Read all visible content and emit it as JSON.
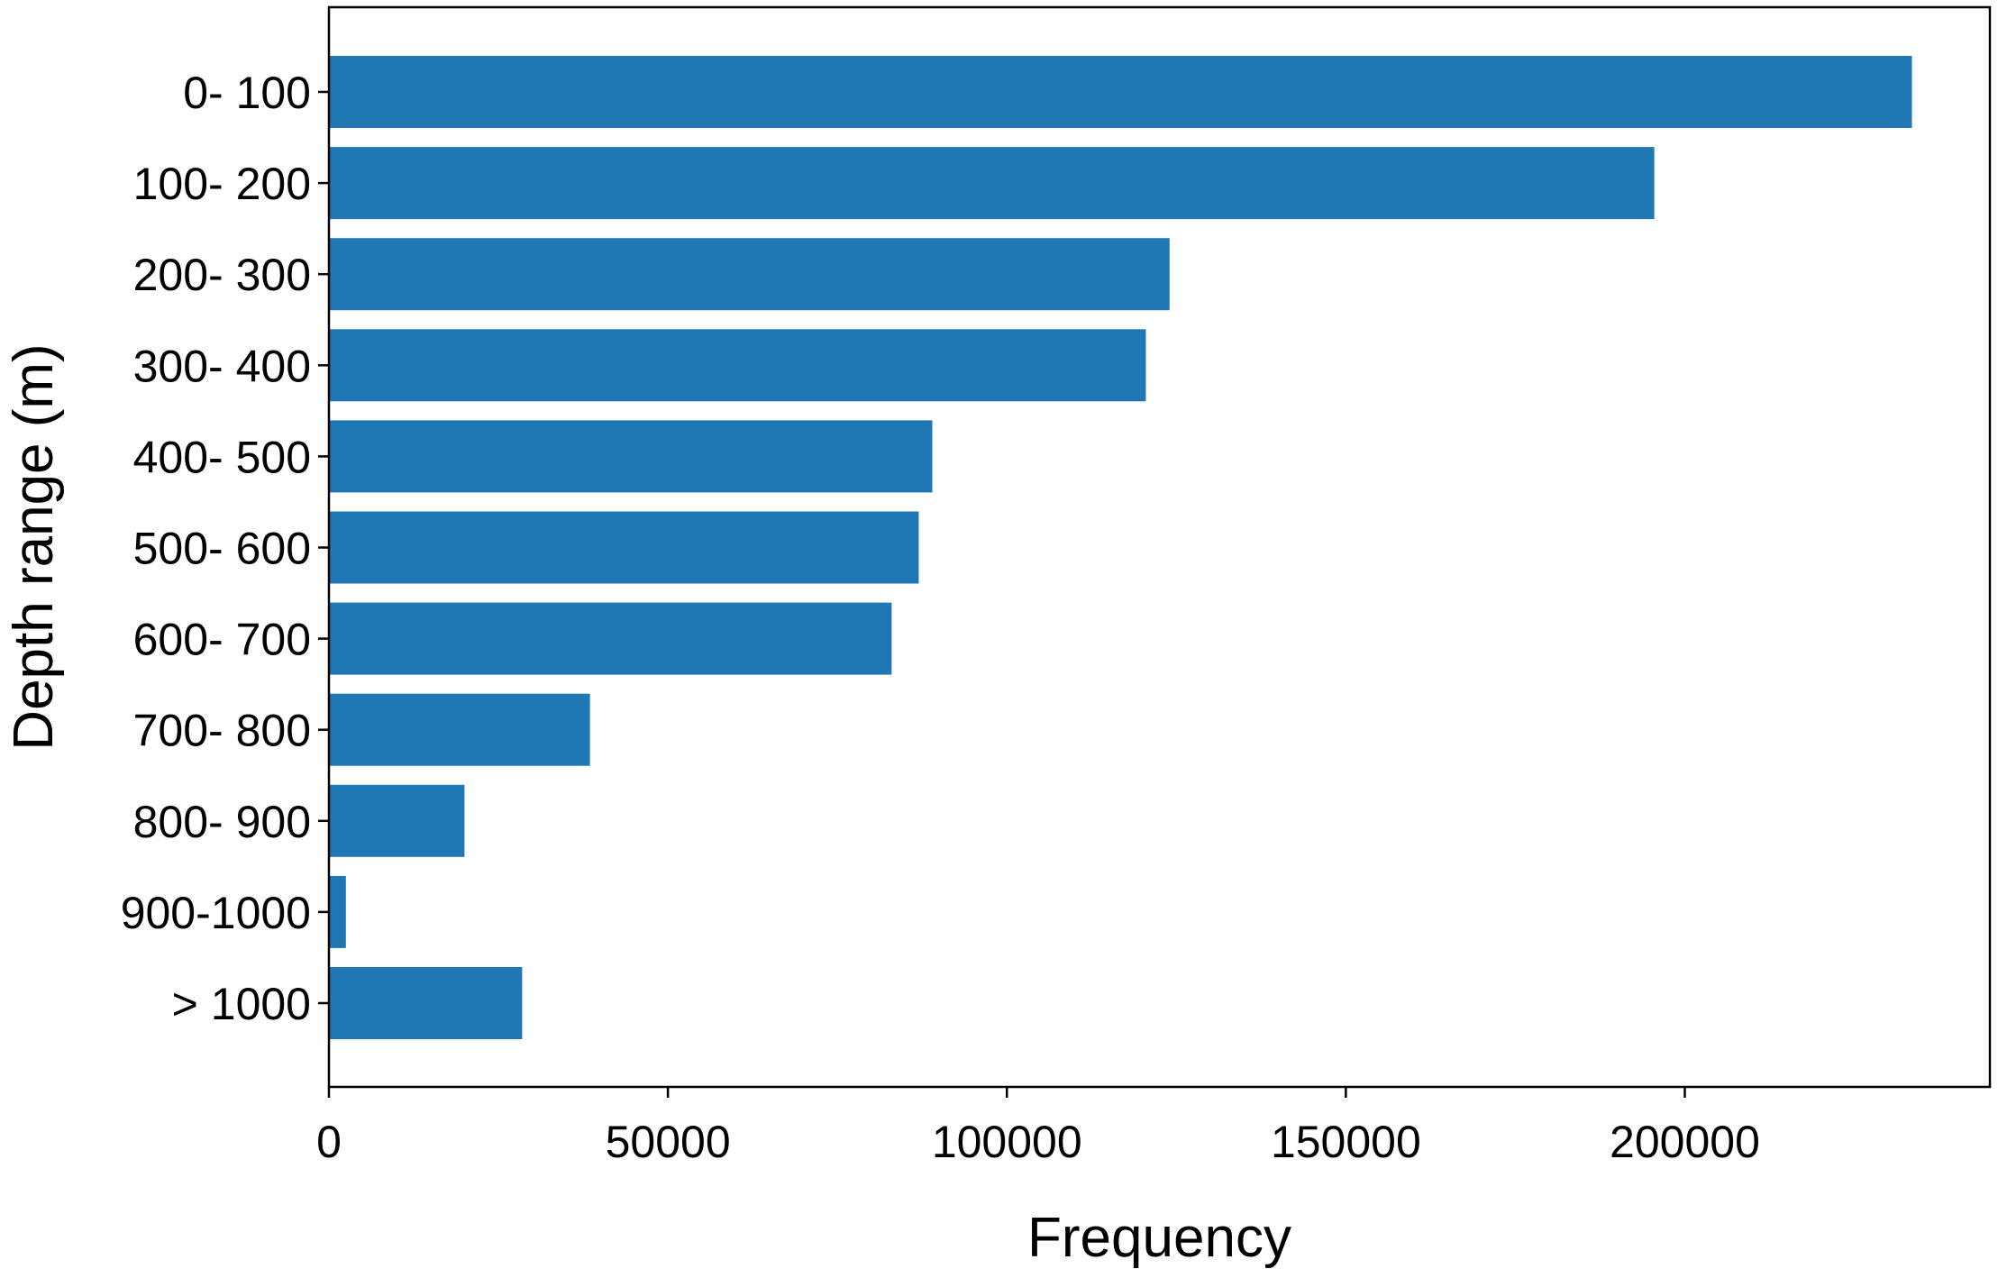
{
  "chart_data": {
    "type": "bar",
    "orientation": "horizontal",
    "title": "",
    "xlabel": "Frequency",
    "ylabel": "Depth range (m)",
    "categories": [
      "0- 100",
      "100- 200",
      "200- 300",
      "300- 400",
      "400- 500",
      "500- 600",
      "600- 700",
      "700- 800",
      "800- 900",
      "900-1000",
      "> 1000"
    ],
    "values": [
      233500,
      195500,
      124000,
      120500,
      89000,
      87000,
      83000,
      38500,
      20000,
      2500,
      28500
    ],
    "xlim": [
      0,
      245000
    ],
    "xticks": [
      0,
      50000,
      100000,
      150000,
      200000
    ],
    "xtick_labels": [
      "0",
      "50000",
      "100000",
      "150000",
      "200000"
    ],
    "bar_color": "#1f77b4",
    "grid": false,
    "legend": "none"
  }
}
